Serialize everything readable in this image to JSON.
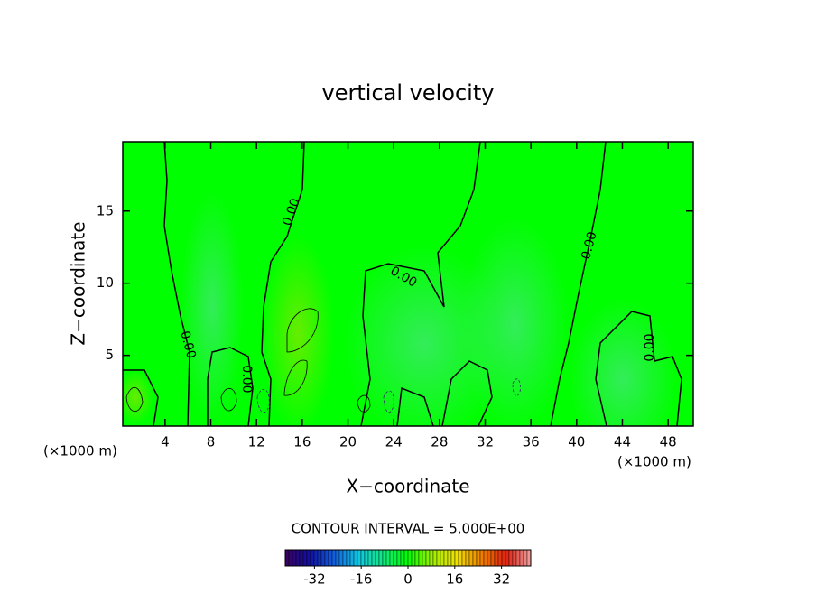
{
  "chart_data": {
    "type": "contour",
    "title": "vertical velocity",
    "x_label": "X−coordinate",
    "y_label": "Z−coordinate",
    "x_unit": "(×1000 m)",
    "x_unit_right": "(×1000 m)",
    "xlim": [
      0.3,
      50.2
    ],
    "ylim": [
      0.1,
      19.8
    ],
    "xticks": [
      4,
      8,
      12,
      16,
      20,
      24,
      28,
      32,
      36,
      40,
      44,
      48
    ],
    "yticks": [
      5,
      10,
      15
    ],
    "grid": false,
    "contour_labels": [
      "0.00",
      "0.00",
      "0.00",
      "0.00",
      "0.00",
      "0.00"
    ],
    "contour_interval": "CONTOUR INTERVAL = 5.000E+00",
    "colorbar": {
      "clim": [
        -42,
        42
      ],
      "ticks": [
        -32,
        -16,
        0,
        16,
        32
      ],
      "colormap": [
        "#3a0060",
        "#1010a0",
        "#1060e0",
        "#10c8e0",
        "#10e880",
        "#00ff00",
        "#a0f000",
        "#f0e000",
        "#f08000",
        "#e02010",
        "#f0a0a0"
      ]
    },
    "field_color": "#00ff00"
  }
}
